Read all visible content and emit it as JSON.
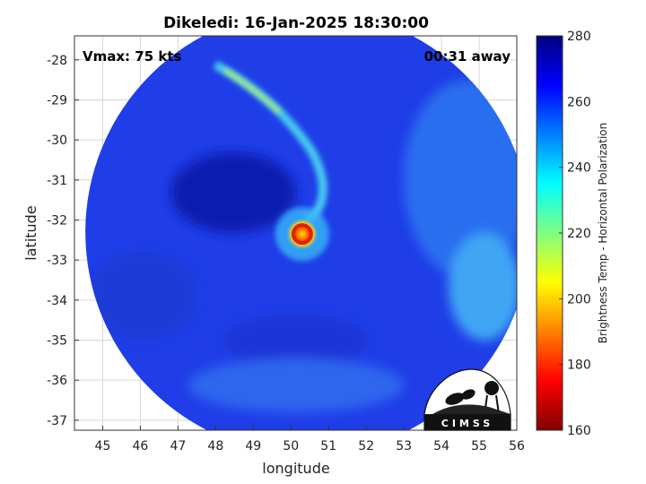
{
  "chart_data": {
    "type": "heatmap",
    "title": "Dikeledi: 16-Jan-2025 18:30:00",
    "xlabel": "longitude",
    "ylabel": "latitude",
    "xlim": [
      44.25,
      56.0
    ],
    "ylim": [
      -37.25,
      -27.4
    ],
    "x_ticks": [
      "45",
      "46",
      "47",
      "48",
      "49",
      "50",
      "51",
      "52",
      "53",
      "54",
      "55",
      "56"
    ],
    "y_ticks": [
      "-28",
      "-29",
      "-30",
      "-31",
      "-32",
      "-33",
      "-34",
      "-35",
      "-36",
      "-37"
    ],
    "grid": true,
    "annotations": {
      "left": "Vmax: 75 kts",
      "right": "00:31 away"
    },
    "storm_center": {
      "lon": 50.3,
      "lat": -32.35
    },
    "swath_center": {
      "lon": 50.45,
      "lat": -32.3
    },
    "colorbar": {
      "label": "Brightness Temp - Horizontal Polarization",
      "range": [
        160,
        280
      ],
      "ticks": [
        "280",
        "260",
        "240",
        "220",
        "200",
        "180",
        "160"
      ],
      "colormap": "jet"
    },
    "logo": {
      "text": "CIMSS"
    }
  }
}
